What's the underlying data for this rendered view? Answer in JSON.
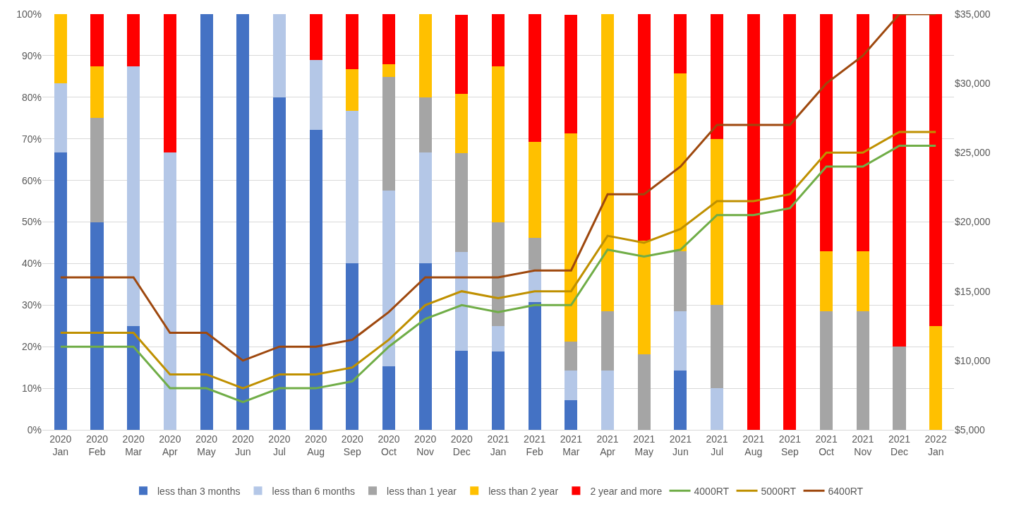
{
  "chart_data": {
    "type": "bar",
    "stacked": true,
    "categories": [
      "2020\nJan",
      "2020\nFeb",
      "2020\nMar",
      "2020\nApr",
      "2020\nMay",
      "2020\nJun",
      "2020\nJul",
      "2020\nAug",
      "2020\nSep",
      "2020\nOct",
      "2020\nNov",
      "2020\nDec",
      "2021\nJan",
      "2021\nFeb",
      "2021\nMar",
      "2021\nApr",
      "2021\nMay",
      "2021\nJun",
      "2021\nJul",
      "2021\nAug",
      "2021\nSep",
      "2021\nOct",
      "2021\nNov",
      "2021\nDec",
      "2022\nJan"
    ],
    "series": [
      {
        "name": "less than 3 months",
        "color": "#4472c4",
        "values": [
          66.7,
          50,
          25,
          0,
          100,
          100,
          80,
          72.2,
          40,
          15.2,
          40,
          19,
          18.8,
          30.8,
          7.1,
          0,
          0,
          14.3,
          0,
          0,
          0,
          0,
          0,
          0,
          0
        ]
      },
      {
        "name": "less than 6 months",
        "color": "#b4c7e7",
        "values": [
          16.7,
          0,
          62.5,
          66.7,
          0,
          0,
          20,
          16.7,
          36.7,
          42.4,
          26.7,
          23.8,
          6.2,
          7.7,
          7.1,
          14.3,
          0,
          14.3,
          10,
          0,
          0,
          0,
          0,
          0,
          0
        ]
      },
      {
        "name": "less than 1 year",
        "color": "#a5a5a5",
        "values": [
          0,
          25,
          0,
          0,
          0,
          0,
          0,
          0,
          0,
          27.3,
          13.3,
          23.8,
          25,
          7.7,
          7.1,
          14.3,
          18.2,
          14.3,
          20,
          0,
          0,
          28.6,
          28.6,
          20,
          0
        ]
      },
      {
        "name": "less than 2 year",
        "color": "#ffc000",
        "values": [
          16.7,
          12.5,
          0,
          0,
          0,
          0,
          0,
          0,
          10,
          3,
          20,
          14.3,
          37.5,
          23.1,
          50,
          71.4,
          27.3,
          42.9,
          40,
          0,
          0,
          14.3,
          14.3,
          0,
          25
        ]
      },
      {
        "name": "2 year and more",
        "color": "#ff0000",
        "values": [
          0,
          12.5,
          12.5,
          33.3,
          0,
          0,
          0,
          11.1,
          13.3,
          12.1,
          0,
          19,
          12.5,
          30.8,
          28.6,
          0,
          54.5,
          14.3,
          30,
          100,
          100,
          57.1,
          57.1,
          80,
          75
        ]
      },
      {
        "name": "4000RT",
        "type": "line",
        "axis": "y2",
        "color": "#70ad47",
        "values": [
          11000,
          11000,
          11000,
          8000,
          8000,
          7000,
          8000,
          8000,
          8500,
          11000,
          13000,
          14000,
          13500,
          14000,
          14000,
          18000,
          17500,
          18000,
          20500,
          20500,
          21000,
          24000,
          24000,
          25500,
          25500
        ]
      },
      {
        "name": "5000RT",
        "type": "line",
        "axis": "y2",
        "color": "#bf9000",
        "values": [
          12000,
          12000,
          12000,
          9000,
          9000,
          8000,
          9000,
          9000,
          9500,
          11500,
          14000,
          15000,
          14500,
          15000,
          15000,
          19000,
          18500,
          19500,
          21500,
          21500,
          22000,
          25000,
          25000,
          26500,
          26500
        ]
      },
      {
        "name": "6400RT",
        "type": "line",
        "axis": "y2",
        "color": "#9e480e",
        "values": [
          16000,
          16000,
          16000,
          12000,
          12000,
          10000,
          11000,
          11000,
          11500,
          13500,
          16000,
          16000,
          16000,
          16500,
          16500,
          22000,
          22000,
          24000,
          27000,
          27000,
          27000,
          30000,
          32000,
          35000,
          35000
        ]
      }
    ],
    "ylim": [
      0,
      100
    ],
    "yticks": [
      {
        "value": 0,
        "label": "0%"
      },
      {
        "value": 10,
        "label": "10%"
      },
      {
        "value": 20,
        "label": "20%"
      },
      {
        "value": 30,
        "label": "30%"
      },
      {
        "value": 40,
        "label": "40%"
      },
      {
        "value": 50,
        "label": "50%"
      },
      {
        "value": 60,
        "label": "60%"
      },
      {
        "value": 70,
        "label": "70%"
      },
      {
        "value": 80,
        "label": "80%"
      },
      {
        "value": 90,
        "label": "90%"
      },
      {
        "value": 100,
        "label": "100%"
      }
    ],
    "y2lim": [
      5000,
      35000
    ],
    "y2ticks": [
      {
        "value": 5000,
        "label": "$5,000"
      },
      {
        "value": 10000,
        "label": "$10,000"
      },
      {
        "value": 15000,
        "label": "$15,000"
      },
      {
        "value": 20000,
        "label": "$20,000"
      },
      {
        "value": 25000,
        "label": "$25,000"
      },
      {
        "value": 30000,
        "label": "$30,000"
      },
      {
        "value": 35000,
        "label": "$35,000"
      }
    ],
    "grid": "y",
    "legend": "bottom",
    "marker": "none",
    "line_style": "solid"
  }
}
